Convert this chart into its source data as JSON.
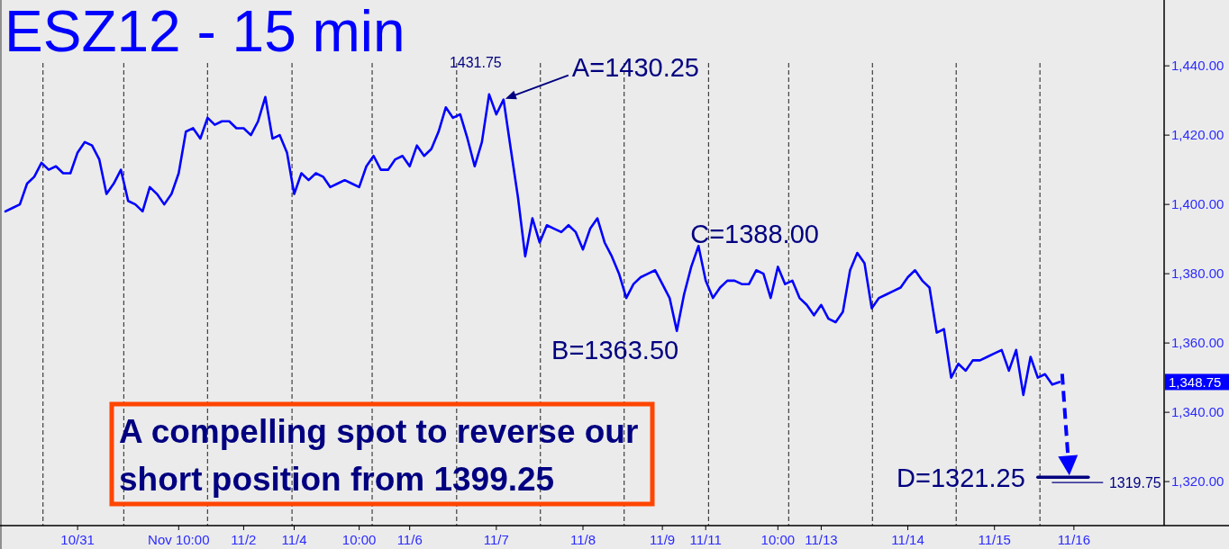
{
  "chart_data": {
    "type": "line",
    "title": "ESZ12 - 15 min",
    "categories": [
      null,
      null,
      null,
      null,
      null,
      null,
      null,
      null,
      null,
      null,
      "10/31",
      null,
      null,
      null,
      null,
      null,
      null,
      null,
      null,
      null,
      null,
      null,
      null,
      null,
      "Nov 10:00",
      null,
      null,
      null,
      null,
      null,
      null,
      null,
      null,
      "11/2",
      null,
      null,
      null,
      null,
      null,
      null,
      "11/4",
      null,
      null,
      null,
      null,
      null,
      null,
      null,
      null,
      "10:00",
      null,
      null,
      null,
      null,
      null,
      null,
      "11/6",
      null,
      null,
      null,
      null,
      null,
      null,
      null,
      null,
      null,
      null,
      null,
      "11/7",
      null,
      null,
      null,
      null,
      null,
      null,
      null,
      null,
      null,
      null,
      null,
      "11/8",
      null,
      null,
      null,
      null,
      null,
      null,
      null,
      null,
      null,
      null,
      "11/9",
      null,
      null,
      null,
      null,
      null,
      "11/11",
      null,
      null,
      null,
      null,
      null,
      null,
      null,
      null,
      null,
      "10:00",
      null,
      null,
      null,
      null,
      null,
      "11/13",
      null,
      null,
      null,
      null,
      null,
      null,
      null,
      null,
      null,
      null,
      null,
      "11/14",
      null,
      null,
      null,
      null,
      null,
      null,
      null,
      null,
      null,
      null,
      null,
      "11/15",
      null,
      null,
      null,
      null,
      null,
      null,
      null,
      null,
      null,
      null,
      "11/16",
      null,
      null,
      null,
      null,
      null,
      null,
      null,
      null,
      null,
      null,
      null,
      null
    ],
    "ylim": [
      1307.3,
      1459
    ],
    "yticks": [
      {
        "value": 1320,
        "label": "1,320.00"
      },
      {
        "value": 1340,
        "label": "1,340.00"
      },
      {
        "value": 1360,
        "label": "1,360.00"
      },
      {
        "value": 1380,
        "label": "1,380.00"
      },
      {
        "value": 1400,
        "label": "1,400.00"
      },
      {
        "value": 1420,
        "label": "1,420.00"
      },
      {
        "value": 1440,
        "label": "1,440.00"
      }
    ],
    "series": [
      {
        "color": "#0000ff",
        "values": [
          1398,
          1399,
          1400,
          1406,
          1408,
          1412,
          1410,
          1411,
          1409,
          1409,
          1415,
          1418,
          1417,
          1413,
          1403,
          1406,
          1410,
          1401,
          1400,
          1398,
          1405,
          1403,
          1400,
          1403,
          1409,
          1421,
          1422,
          1419,
          1425,
          1423,
          1424,
          1424,
          1422,
          1422,
          1420,
          1424,
          1431,
          1419,
          1420,
          1415,
          1403,
          1409,
          1407,
          1409,
          1408,
          1405,
          1406,
          1407,
          1406,
          1405,
          1411,
          1414,
          1410,
          1410,
          1413,
          1414,
          1411,
          1417,
          1414,
          1416,
          1421,
          1428,
          1425,
          1426,
          1419,
          1411,
          1418,
          1431.75,
          1426,
          1430.25,
          1416,
          1402,
          1385,
          1396,
          1389,
          1394,
          1393,
          1392,
          1394,
          1392,
          1387,
          1393,
          1396,
          1389,
          1385,
          1380,
          1373,
          1377,
          1379,
          1380,
          1381,
          1377,
          1373,
          1363.5,
          1374,
          1382,
          1388,
          1378,
          1373,
          1376,
          1378,
          1378,
          1377,
          1377,
          1381,
          1380,
          1373,
          1382,
          1377,
          1378,
          1373,
          1371,
          1368,
          1371,
          1367,
          1366,
          1369,
          1381,
          1386,
          1383,
          1370,
          1373,
          1374,
          1375,
          1376,
          1379,
          1381,
          1378,
          1376,
          1363,
          1364,
          1350,
          1354,
          1352,
          1355,
          1355,
          1356,
          1357,
          1358,
          1352,
          1358,
          1345,
          1356,
          1350,
          1351,
          1348,
          1348.75,
          null,
          null,
          null,
          null,
          null,
          null,
          null,
          null,
          null,
          null,
          null,
          null,
          null,
          null
        ]
      },
      {
        "color": "#000080",
        "values": [
          null,
          null,
          null,
          null,
          null,
          null,
          null,
          null,
          null,
          null,
          null,
          null,
          null,
          null,
          null,
          null,
          null,
          null,
          null,
          null,
          null,
          null,
          null,
          null,
          null,
          null,
          null,
          null,
          null,
          null,
          null,
          null,
          null,
          null,
          null,
          null,
          null,
          null,
          null,
          null,
          null,
          null,
          null,
          null,
          null,
          null,
          null,
          null,
          null,
          null,
          null,
          null,
          null,
          null,
          null,
          null,
          null,
          null,
          null,
          null,
          null,
          null,
          null,
          null,
          null,
          null,
          null,
          null,
          null,
          null,
          null,
          null,
          null,
          null,
          null,
          null,
          null,
          null,
          null,
          null,
          null,
          null,
          null,
          null,
          null,
          null,
          null,
          null,
          null,
          null,
          null,
          null,
          null,
          null,
          null,
          null,
          null,
          null,
          null,
          null,
          null,
          null,
          null,
          null,
          null,
          null,
          null,
          null,
          null,
          null,
          null,
          null,
          null,
          null,
          null,
          null,
          null,
          null,
          null,
          null,
          null,
          null,
          null,
          null,
          null,
          null,
          null,
          null,
          null,
          null,
          null,
          null,
          null,
          null,
          null,
          null,
          null,
          null,
          null,
          null,
          null,
          null,
          null,
          1321.25,
          1321.25,
          1321.25,
          1321.25,
          1321.25,
          1321.25,
          1321.25,
          1321.25,
          null,
          null,
          null,
          null,
          null,
          null,
          null,
          null,
          null,
          null
        ]
      },
      {
        "color": "#000080",
        "values": [
          null,
          null,
          null,
          null,
          null,
          null,
          null,
          null,
          null,
          null,
          null,
          null,
          null,
          null,
          null,
          null,
          null,
          null,
          null,
          null,
          null,
          null,
          null,
          null,
          null,
          null,
          null,
          null,
          null,
          null,
          null,
          null,
          null,
          null,
          null,
          null,
          null,
          null,
          null,
          null,
          null,
          null,
          null,
          null,
          null,
          null,
          null,
          null,
          null,
          null,
          null,
          null,
          null,
          null,
          null,
          null,
          null,
          null,
          null,
          null,
          null,
          null,
          null,
          null,
          null,
          null,
          null,
          null,
          null,
          null,
          null,
          null,
          null,
          null,
          null,
          null,
          null,
          null,
          null,
          null,
          null,
          null,
          null,
          null,
          null,
          null,
          null,
          null,
          null,
          null,
          null,
          null,
          null,
          null,
          null,
          null,
          null,
          null,
          null,
          null,
          null,
          null,
          null,
          null,
          null,
          null,
          null,
          null,
          null,
          null,
          null,
          null,
          null,
          null,
          null,
          null,
          null,
          null,
          null,
          null,
          null,
          null,
          null,
          null,
          null,
          null,
          null,
          null,
          null,
          null,
          null,
          null,
          null,
          null,
          null,
          null,
          null,
          null,
          null,
          null,
          null,
          null,
          null,
          null,
          null,
          1319.75,
          1319.75,
          1319.75,
          1319.75,
          1319.75,
          1319.75,
          1319.75,
          1319.75,
          null,
          null,
          null,
          null,
          null,
          null,
          null,
          null
        ],
        "value_labels": [
          null,
          null,
          null,
          null,
          null,
          null,
          null,
          null,
          null,
          null,
          null,
          null,
          null,
          null,
          null,
          null,
          null,
          null,
          null,
          null,
          null,
          null,
          null,
          null,
          null,
          null,
          null,
          null,
          null,
          null,
          null,
          null,
          null,
          null,
          null,
          null,
          null,
          null,
          null,
          null,
          null,
          null,
          null,
          null,
          null,
          null,
          null,
          null,
          null,
          null,
          null,
          null,
          null,
          null,
          null,
          null,
          null,
          null,
          null,
          null,
          null,
          null,
          null,
          null,
          null,
          null,
          null,
          null,
          null,
          null,
          null,
          null,
          null,
          null,
          null,
          null,
          null,
          null,
          null,
          null,
          null,
          null,
          null,
          null,
          null,
          null,
          null,
          null,
          null,
          null,
          null,
          null,
          null,
          null,
          null,
          null,
          null,
          null,
          null,
          null,
          null,
          null,
          null,
          null,
          null,
          null,
          null,
          null,
          null,
          null,
          null,
          null,
          null,
          null,
          null,
          null,
          null,
          null,
          null,
          null,
          null,
          null,
          null,
          null,
          null,
          null,
          null,
          null,
          null,
          null,
          null,
          null,
          null,
          null,
          null,
          null,
          null,
          null,
          null,
          null,
          null,
          null,
          null,
          null,
          null,
          null,
          null,
          null,
          null,
          null,
          null,
          null,
          "1319.75",
          null,
          null,
          null,
          null,
          null,
          null,
          null,
          null
        ]
      }
    ],
    "annotations": [
      "1431.75",
      "A=1430.25",
      "B=1363.50",
      "C=1388.00",
      "D=1321.25",
      "1,348.75",
      "A compelling spot to reverse our short position from 1399.25"
    ]
  }
}
